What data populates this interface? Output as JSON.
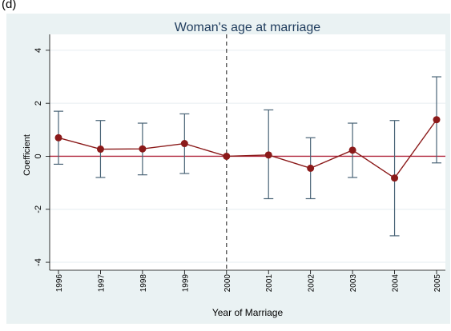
{
  "panel_label": "(d)",
  "chart_data": {
    "type": "line",
    "title": "Woman's age at marriage",
    "xlabel": "Year of Marriage",
    "ylabel": "Coefficient",
    "x": [
      1996,
      1997,
      1998,
      1999,
      2000,
      2001,
      2002,
      2003,
      2004,
      2005
    ],
    "x_tick_labels": [
      "1996",
      "1997",
      "1998",
      "1999",
      "2000",
      "2001",
      "2002",
      "2003",
      "2004",
      "2005"
    ],
    "y_ticks": [
      -4,
      -2,
      0,
      2,
      4
    ],
    "y_tick_labels": [
      "-4",
      "-2",
      "0",
      "2",
      "4"
    ],
    "ylim": [
      -4.3,
      4.6
    ],
    "grid": true,
    "series": [
      {
        "values": [
          0.7,
          0.27,
          0.28,
          0.48,
          0.0,
          0.05,
          -0.45,
          0.23,
          -0.82,
          1.38
        ],
        "ci_low": [
          -0.3,
          -0.8,
          -0.7,
          -0.65,
          0.0,
          -1.6,
          -1.6,
          -0.8,
          -3.0,
          -0.25
        ],
        "ci_high": [
          1.7,
          1.35,
          1.25,
          1.6,
          0.0,
          1.75,
          0.7,
          1.25,
          1.35,
          3.0
        ]
      }
    ],
    "reference_hline": 0,
    "reference_vline": 2000,
    "colors": {
      "background": "#eaf2f3",
      "plot_bg": "#ffffff",
      "grid": "#e6eef0",
      "series": "#8b1a1a",
      "errorbar": "#4a6477",
      "ref_hline": "#b0243c",
      "ref_vline": "#555555",
      "title": "#1e3b5c"
    }
  }
}
